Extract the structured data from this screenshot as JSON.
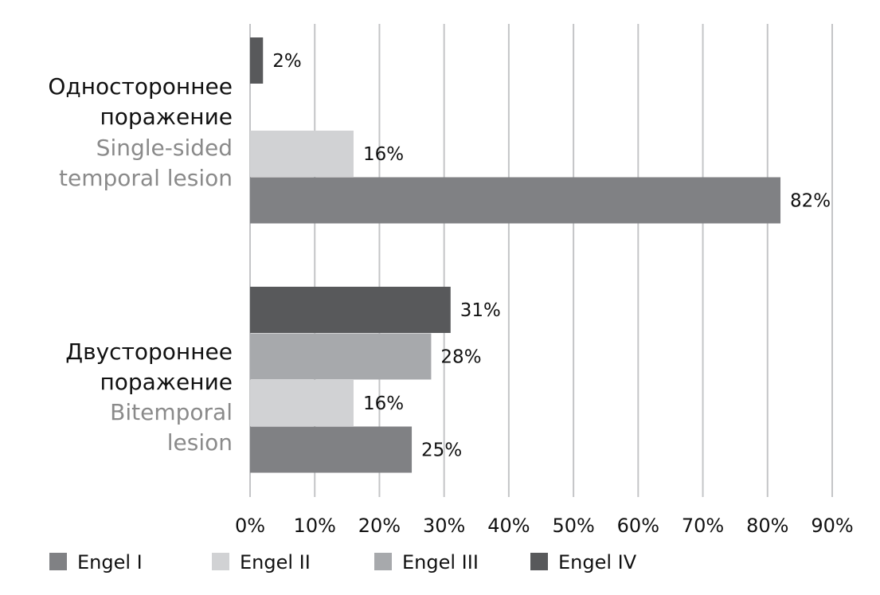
{
  "chart_data": {
    "type": "bar",
    "orientation": "horizontal",
    "categories": [
      {
        "label_ru": [
          "Одностороннее",
          "поражение"
        ],
        "label_en": [
          "Single-sided",
          "temporal lesion"
        ]
      },
      {
        "label_ru": [
          "Двустороннее",
          "поражение"
        ],
        "label_en": [
          "Bitemporal",
          "lesion"
        ]
      }
    ],
    "series": [
      {
        "name": "Engel I",
        "color": "#808184",
        "values": [
          82,
          25
        ],
        "labels": [
          "82%",
          "25%"
        ]
      },
      {
        "name": "Engel II",
        "color": "#d1d2d4",
        "values": [
          16,
          16
        ],
        "labels": [
          "16%",
          "16%"
        ]
      },
      {
        "name": "Engel III",
        "color": "#a7a9ac",
        "values": [
          0,
          28
        ],
        "labels": [
          "",
          "28%"
        ]
      },
      {
        "name": "Engel IV",
        "color": "#58595b",
        "values": [
          2,
          31
        ],
        "labels": [
          "2%",
          "31%"
        ]
      }
    ],
    "x_ticks": [
      "0%",
      "10%",
      "20%",
      "30%",
      "40%",
      "50%",
      "60%",
      "70%",
      "80%",
      "90%"
    ],
    "xlim": [
      0,
      90
    ],
    "grid": true,
    "legend": "bottom"
  }
}
